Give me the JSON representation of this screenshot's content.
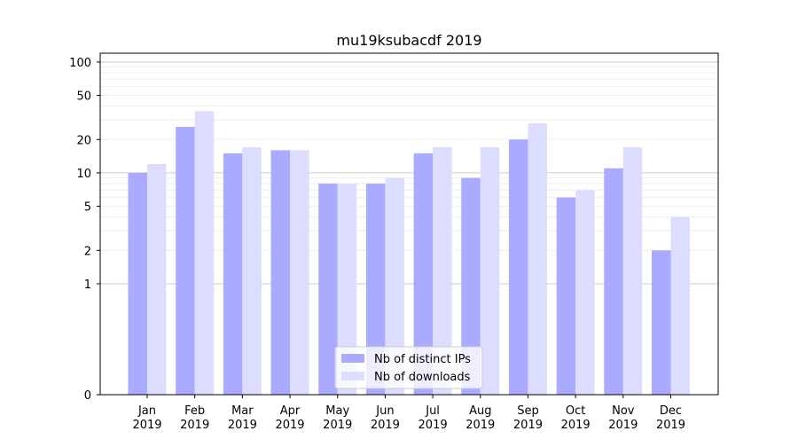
{
  "chart_data": {
    "type": "bar",
    "title": "mu19ksubacdf 2019",
    "xlabel": "",
    "ylabel": "",
    "scale": "symlog",
    "ylim": [
      0,
      120
    ],
    "categories": [
      [
        "Jan",
        "2019"
      ],
      [
        "Feb",
        "2019"
      ],
      [
        "Mar",
        "2019"
      ],
      [
        "Apr",
        "2019"
      ],
      [
        "May",
        "2019"
      ],
      [
        "Jun",
        "2019"
      ],
      [
        "Jul",
        "2019"
      ],
      [
        "Aug",
        "2019"
      ],
      [
        "Sep",
        "2019"
      ],
      [
        "Oct",
        "2019"
      ],
      [
        "Nov",
        "2019"
      ],
      [
        "Dec",
        "2019"
      ]
    ],
    "yticks": [
      {
        "value": 0,
        "label": "0"
      },
      {
        "value": 1,
        "label": "1"
      },
      {
        "value": 2,
        "label": "2"
      },
      {
        "value": 5,
        "label": "5"
      },
      {
        "value": 10,
        "label": "10"
      },
      {
        "value": 20,
        "label": "20"
      },
      {
        "value": 50,
        "label": "50"
      },
      {
        "value": 100,
        "label": "100"
      }
    ],
    "grid": true,
    "legend_position": "bottom-center",
    "series": [
      {
        "name": "Nb of distinct IPs",
        "color": "#aaaaff",
        "values": [
          10,
          26,
          15,
          16,
          8,
          8,
          15,
          9,
          20,
          6,
          11,
          2
        ]
      },
      {
        "name": "Nb of downloads",
        "color": "#ddddff",
        "values": [
          12,
          36,
          17,
          16,
          8,
          9,
          17,
          17,
          28,
          7,
          17,
          4
        ]
      }
    ]
  }
}
